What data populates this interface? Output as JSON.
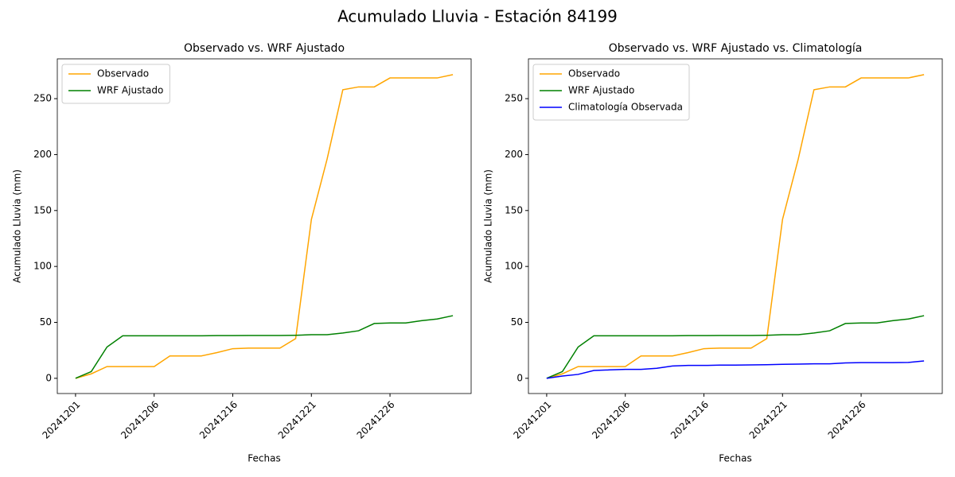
{
  "title": "Acumulado Lluvia - Estación 84199",
  "chart_data": [
    {
      "type": "line",
      "title": "Observado vs. WRF Ajustado",
      "x_label": "Fechas",
      "y_label": "Acumulado Lluvia (mm)",
      "categories": [
        "20241201",
        null,
        null,
        null,
        null,
        "20241206",
        null,
        null,
        null,
        null,
        "20241216",
        null,
        null,
        null,
        null,
        "20241221",
        null,
        null,
        null,
        null,
        "20241226",
        null,
        null,
        null,
        null
      ],
      "ylim": [
        -13.6,
        285.6
      ],
      "yticks": [
        0,
        50,
        100,
        150,
        200,
        250
      ],
      "legend": "upper left",
      "series": [
        {
          "name": "Observado",
          "color": "orange",
          "values": [
            0,
            4,
            10.5,
            10.5,
            10.5,
            10.5,
            20,
            20,
            20,
            23,
            26.5,
            27,
            27,
            27,
            35.5,
            142,
            196,
            258,
            260.5,
            260.5,
            268.5,
            268.5,
            268.5,
            268.5,
            271.5
          ]
        },
        {
          "name": "WRF Ajustado",
          "color": "green",
          "values": [
            0,
            6,
            28,
            38,
            38,
            38,
            38,
            38,
            38,
            38.2,
            38.2,
            38.3,
            38.3,
            38.3,
            38.5,
            39,
            39,
            40.5,
            42.5,
            49,
            49.5,
            49.5,
            51.5,
            53,
            56
          ]
        }
      ]
    },
    {
      "type": "line",
      "title": "Observado vs. WRF Ajustado vs. Climatología",
      "x_label": "Fechas",
      "y_label": "Acumulado Lluvia (mm)",
      "categories": [
        "20241201",
        null,
        null,
        null,
        null,
        "20241206",
        null,
        null,
        null,
        null,
        "20241216",
        null,
        null,
        null,
        null,
        "20241221",
        null,
        null,
        null,
        null,
        "20241226",
        null,
        null,
        null,
        null
      ],
      "ylim": [
        -13.6,
        285.6
      ],
      "yticks": [
        0,
        50,
        100,
        150,
        200,
        250
      ],
      "legend": "upper left",
      "series": [
        {
          "name": "Observado",
          "color": "orange",
          "values": [
            0,
            4,
            10.5,
            10.5,
            10.5,
            10.5,
            20,
            20,
            20,
            23,
            26.5,
            27,
            27,
            27,
            35.5,
            142,
            196,
            258,
            260.5,
            260.5,
            268.5,
            268.5,
            268.5,
            268.5,
            271.5
          ]
        },
        {
          "name": "WRF Ajustado",
          "color": "green",
          "values": [
            0,
            6,
            28,
            38,
            38,
            38,
            38,
            38,
            38,
            38.2,
            38.2,
            38.3,
            38.3,
            38.3,
            38.5,
            39,
            39,
            40.5,
            42.5,
            49,
            49.5,
            49.5,
            51.5,
            53,
            56
          ]
        },
        {
          "name": "Climatología Observada",
          "color": "blue",
          "values": [
            0,
            2,
            3.5,
            7,
            7.5,
            8,
            8,
            9,
            11,
            11.5,
            11.5,
            11.8,
            11.8,
            12,
            12.2,
            12.5,
            12.7,
            13,
            13,
            13.8,
            14,
            14,
            14,
            14.2,
            15.5
          ]
        }
      ]
    }
  ]
}
